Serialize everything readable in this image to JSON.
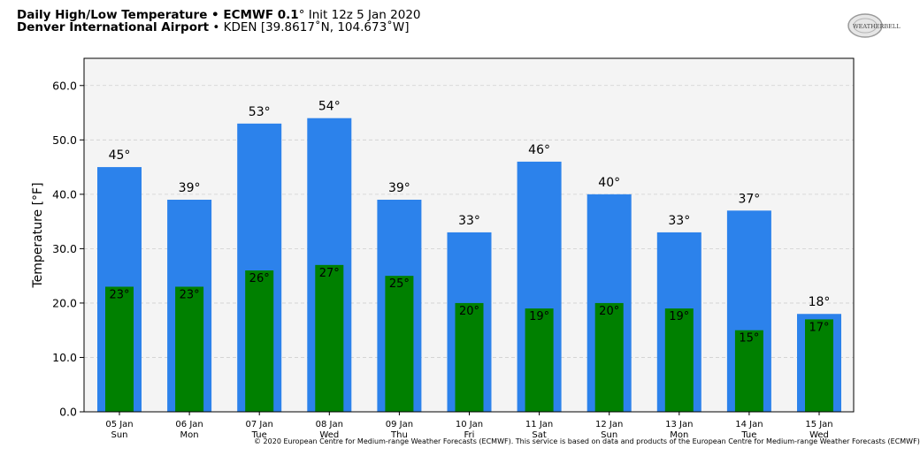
{
  "header": {
    "title_bold": "Daily High/Low Temperature • ECMWF 0.1",
    "title_deg": "°",
    "title_rest": " Init 12z 5 Jan 2020",
    "location_bold": "Denver International Airport",
    "location_rest": " • KDEN [39.8617˚N, 104.673˚W]"
  },
  "logo": {
    "icon": "weatherbell-logo",
    "text": "WEATHERBELL"
  },
  "copyright": "© 2020 European Centre for Medium-range Weather Forecasts (ECMWF). This service is based on data and products of the European Centre for Medium-range Weather Forecasts (ECMWF)",
  "chart_data": {
    "type": "bar",
    "ylabel": "Temperature [°F]",
    "ylim": [
      0,
      65
    ],
    "yticks": [
      "0.0",
      "10.0",
      "20.0",
      "30.0",
      "40.0",
      "50.0",
      "60.0"
    ],
    "categories": [
      "05 Jan",
      "06 Jan",
      "07 Jan",
      "08 Jan",
      "09 Jan",
      "10 Jan",
      "11 Jan",
      "12 Jan",
      "13 Jan",
      "14 Jan",
      "15 Jan"
    ],
    "weekdays": [
      "Sun",
      "Mon",
      "Tue",
      "Wed",
      "Thu",
      "Fri",
      "Sat",
      "Sun",
      "Mon",
      "Tue",
      "Wed"
    ],
    "series": [
      {
        "role": "high",
        "values": [
          45,
          39,
          53,
          54,
          39,
          33,
          46,
          40,
          33,
          37,
          18
        ],
        "color": "#2c82eb"
      },
      {
        "role": "low",
        "values": [
          23,
          23,
          26,
          27,
          25,
          20,
          19,
          20,
          19,
          15,
          17
        ],
        "color": "#008000"
      }
    ],
    "grid": true,
    "background": "#f4f4f4"
  }
}
